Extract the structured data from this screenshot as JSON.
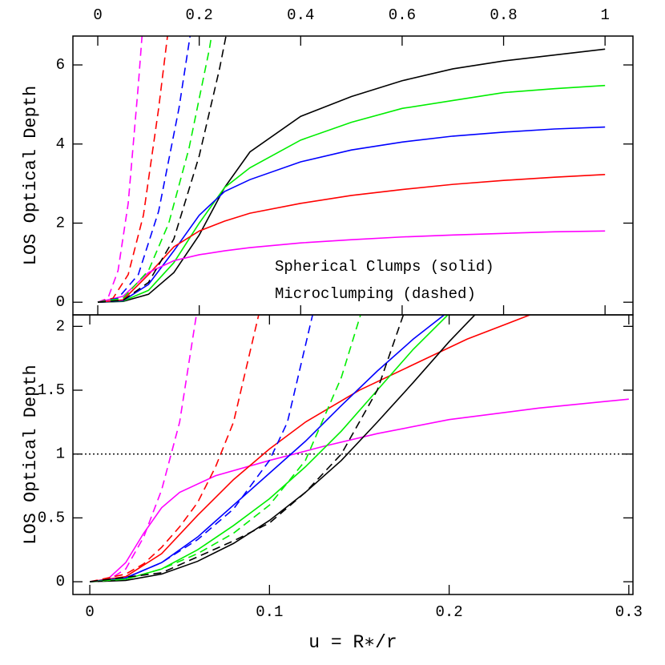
{
  "chart_data": [
    {
      "type": "line",
      "ylabel": "LOS Optical Depth",
      "annotations": [
        "Spherical Clumps (solid)",
        "Microclumping (dashed)"
      ],
      "xaxis": "top",
      "xlim": [
        -0.049,
        1.055
      ],
      "xticks": [
        0,
        0.2,
        0.4,
        0.6,
        0.8,
        1
      ],
      "ylim": [
        -0.32,
        6.73
      ],
      "yticks": [
        0,
        2,
        4,
        6
      ],
      "series": [
        {
          "color": "#000000",
          "dashed": false,
          "x": [
            0,
            0.05,
            0.1,
            0.15,
            0.2,
            0.25,
            0.3,
            0.4,
            0.5,
            0.6,
            0.7,
            0.8,
            0.9,
            1.0
          ],
          "values": [
            0,
            0.02,
            0.2,
            0.75,
            1.7,
            2.9,
            3.8,
            4.7,
            5.2,
            5.6,
            5.9,
            6.1,
            6.25,
            6.4
          ]
        },
        {
          "color": "#00ee00",
          "dashed": false,
          "x": [
            0,
            0.05,
            0.1,
            0.15,
            0.2,
            0.25,
            0.3,
            0.4,
            0.5,
            0.6,
            0.7,
            0.8,
            0.9,
            1.0
          ],
          "values": [
            0,
            0.03,
            0.3,
            1.0,
            2.0,
            2.9,
            3.4,
            4.1,
            4.55,
            4.9,
            5.1,
            5.3,
            5.4,
            5.48
          ]
        },
        {
          "color": "#0000ff",
          "dashed": false,
          "x": [
            0,
            0.05,
            0.1,
            0.15,
            0.2,
            0.25,
            0.3,
            0.4,
            0.5,
            0.6,
            0.7,
            0.8,
            0.9,
            1.0
          ],
          "values": [
            0,
            0.04,
            0.45,
            1.3,
            2.2,
            2.8,
            3.1,
            3.55,
            3.85,
            4.05,
            4.2,
            4.3,
            4.38,
            4.43
          ]
        },
        {
          "color": "#ff0000",
          "dashed": false,
          "x": [
            0,
            0.05,
            0.1,
            0.15,
            0.2,
            0.25,
            0.3,
            0.4,
            0.5,
            0.6,
            0.7,
            0.8,
            0.9,
            1.0
          ],
          "values": [
            0,
            0.06,
            0.7,
            1.4,
            1.8,
            2.05,
            2.25,
            2.5,
            2.7,
            2.85,
            2.98,
            3.08,
            3.16,
            3.23
          ]
        },
        {
          "color": "#ff00ff",
          "dashed": false,
          "x": [
            0,
            0.05,
            0.1,
            0.15,
            0.2,
            0.25,
            0.3,
            0.4,
            0.5,
            0.6,
            0.7,
            0.8,
            0.9,
            1.0
          ],
          "values": [
            0,
            0.15,
            0.75,
            1.05,
            1.2,
            1.3,
            1.38,
            1.5,
            1.58,
            1.65,
            1.7,
            1.74,
            1.78,
            1.8
          ]
        },
        {
          "color": "#ff00ff",
          "dashed": true,
          "x": [
            0,
            0.02,
            0.04,
            0.06,
            0.08,
            0.09
          ],
          "values": [
            0,
            0.1,
            0.8,
            2.5,
            5.5,
            7.2
          ]
        },
        {
          "color": "#ff0000",
          "dashed": true,
          "x": [
            0,
            0.03,
            0.06,
            0.09,
            0.12,
            0.14
          ],
          "values": [
            0,
            0.1,
            0.7,
            2.2,
            4.9,
            7.0
          ]
        },
        {
          "color": "#0000ff",
          "dashed": true,
          "x": [
            0,
            0.04,
            0.08,
            0.12,
            0.16,
            0.19
          ],
          "values": [
            0,
            0.1,
            0.7,
            2.3,
            4.9,
            7.4
          ]
        },
        {
          "color": "#00ee00",
          "dashed": true,
          "x": [
            0,
            0.05,
            0.1,
            0.14,
            0.18,
            0.22,
            0.23
          ],
          "values": [
            0,
            0.1,
            0.8,
            2.0,
            3.9,
            6.4,
            7.2
          ]
        },
        {
          "color": "#000000",
          "dashed": true,
          "x": [
            0,
            0.05,
            0.1,
            0.15,
            0.2,
            0.24,
            0.26
          ],
          "values": [
            0,
            0.05,
            0.5,
            1.6,
            3.7,
            5.9,
            7.2
          ]
        }
      ]
    },
    {
      "type": "line",
      "ylabel": "LOS Optical Depth",
      "xlabel": "u = R∗/r",
      "xaxis": "bottom",
      "hline": 1,
      "xlim": [
        -0.0094,
        0.3023
      ],
      "xticks": [
        0,
        0.1,
        0.2,
        0.3
      ],
      "ylim": [
        -0.1,
        2.09
      ],
      "yticks": [
        0,
        0.5,
        1,
        1.5,
        2
      ],
      "series": [
        {
          "color": "#ff00ff",
          "dashed": false,
          "x": [
            0,
            0.01,
            0.02,
            0.03,
            0.04,
            0.05,
            0.07,
            0.1,
            0.13,
            0.16,
            0.2,
            0.25,
            0.3
          ],
          "values": [
            0,
            0.02,
            0.15,
            0.38,
            0.58,
            0.7,
            0.83,
            0.95,
            1.06,
            1.16,
            1.27,
            1.36,
            1.43
          ]
        },
        {
          "color": "#ff0000",
          "dashed": false,
          "x": [
            0,
            0.02,
            0.04,
            0.06,
            0.08,
            0.1,
            0.12,
            0.15,
            0.18,
            0.21,
            0.245
          ],
          "values": [
            0,
            0.04,
            0.22,
            0.52,
            0.8,
            1.04,
            1.25,
            1.5,
            1.7,
            1.9,
            2.09
          ]
        },
        {
          "color": "#0000ff",
          "dashed": false,
          "x": [
            0,
            0.02,
            0.04,
            0.06,
            0.08,
            0.1,
            0.12,
            0.14,
            0.16,
            0.18,
            0.2
          ],
          "values": [
            0,
            0.03,
            0.15,
            0.35,
            0.6,
            0.85,
            1.1,
            1.38,
            1.65,
            1.9,
            2.12
          ]
        },
        {
          "color": "#00ee00",
          "dashed": false,
          "x": [
            0,
            0.02,
            0.04,
            0.06,
            0.08,
            0.1,
            0.12,
            0.14,
            0.16,
            0.18,
            0.2
          ],
          "values": [
            0,
            0.02,
            0.1,
            0.25,
            0.44,
            0.65,
            0.9,
            1.18,
            1.5,
            1.82,
            2.1
          ]
        },
        {
          "color": "#000000",
          "dashed": false,
          "x": [
            0,
            0.02,
            0.04,
            0.06,
            0.08,
            0.1,
            0.12,
            0.14,
            0.16,
            0.18,
            0.2,
            0.215
          ],
          "values": [
            0,
            0.01,
            0.06,
            0.16,
            0.3,
            0.48,
            0.7,
            0.95,
            1.25,
            1.56,
            1.88,
            2.1
          ]
        },
        {
          "color": "#ff00ff",
          "dashed": true,
          "x": [
            0,
            0.01,
            0.02,
            0.03,
            0.04,
            0.05,
            0.06
          ],
          "values": [
            0,
            0.01,
            0.1,
            0.35,
            0.72,
            1.25,
            2.15
          ]
        },
        {
          "color": "#ff0000",
          "dashed": true,
          "x": [
            0,
            0.02,
            0.03,
            0.04,
            0.05,
            0.06,
            0.07,
            0.08,
            0.095
          ],
          "values": [
            0,
            0.06,
            0.14,
            0.27,
            0.43,
            0.62,
            0.9,
            1.25,
            2.15
          ]
        },
        {
          "color": "#0000ff",
          "dashed": true,
          "x": [
            0,
            0.02,
            0.04,
            0.06,
            0.08,
            0.1,
            0.11,
            0.125
          ],
          "values": [
            0,
            0.03,
            0.15,
            0.33,
            0.57,
            0.95,
            1.25,
            2.15
          ]
        },
        {
          "color": "#00ee00",
          "dashed": true,
          "x": [
            0,
            0.02,
            0.04,
            0.06,
            0.08,
            0.1,
            0.12,
            0.14,
            0.152
          ],
          "values": [
            0,
            0.02,
            0.1,
            0.22,
            0.38,
            0.6,
            0.95,
            1.6,
            2.15
          ]
        },
        {
          "color": "#000000",
          "dashed": true,
          "x": [
            0,
            0.04,
            0.08,
            0.1,
            0.12,
            0.14,
            0.16,
            0.176
          ],
          "values": [
            0,
            0.07,
            0.32,
            0.46,
            0.7,
            1.0,
            1.5,
            2.15
          ]
        }
      ]
    }
  ]
}
